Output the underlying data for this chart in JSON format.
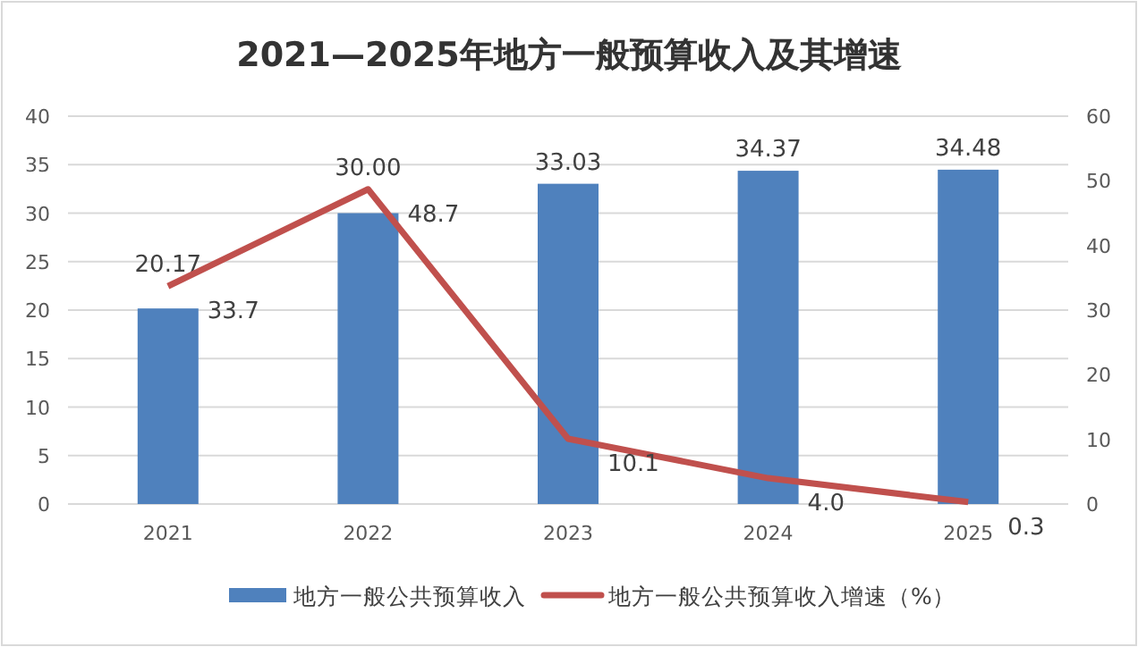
{
  "chart_data": {
    "type": "bar",
    "title": "2021—2025年地方一般预算收入及其增速",
    "categories": [
      "2021",
      "2022",
      "2023",
      "2024",
      "2025"
    ],
    "series": [
      {
        "name": "地方一般公共预算收入",
        "color": "#4f81bd",
        "values": [
          20.17,
          30.0,
          33.03,
          34.37,
          34.48
        ],
        "value_labels": [
          "20.17",
          "30.00",
          "33.03",
          "34.37",
          "34.48"
        ]
      },
      {
        "name": "地方一般公共预算收入增速（%）",
        "type": "line",
        "axis": "y2",
        "color": "#c0504d",
        "values": [
          33.7,
          48.7,
          10.1,
          4.0,
          0.3
        ],
        "value_labels": [
          "33.7",
          "48.7",
          "10.1",
          "4.0",
          "0.3"
        ]
      }
    ],
    "ylim": [
      0,
      40
    ],
    "yticks": [
      0,
      5,
      10,
      15,
      20,
      25,
      30,
      35,
      40
    ],
    "y2lim": [
      0,
      60
    ],
    "y2ticks": [
      0,
      10,
      20,
      30,
      40,
      50,
      60
    ],
    "grid": "y",
    "legend": "bottom"
  }
}
